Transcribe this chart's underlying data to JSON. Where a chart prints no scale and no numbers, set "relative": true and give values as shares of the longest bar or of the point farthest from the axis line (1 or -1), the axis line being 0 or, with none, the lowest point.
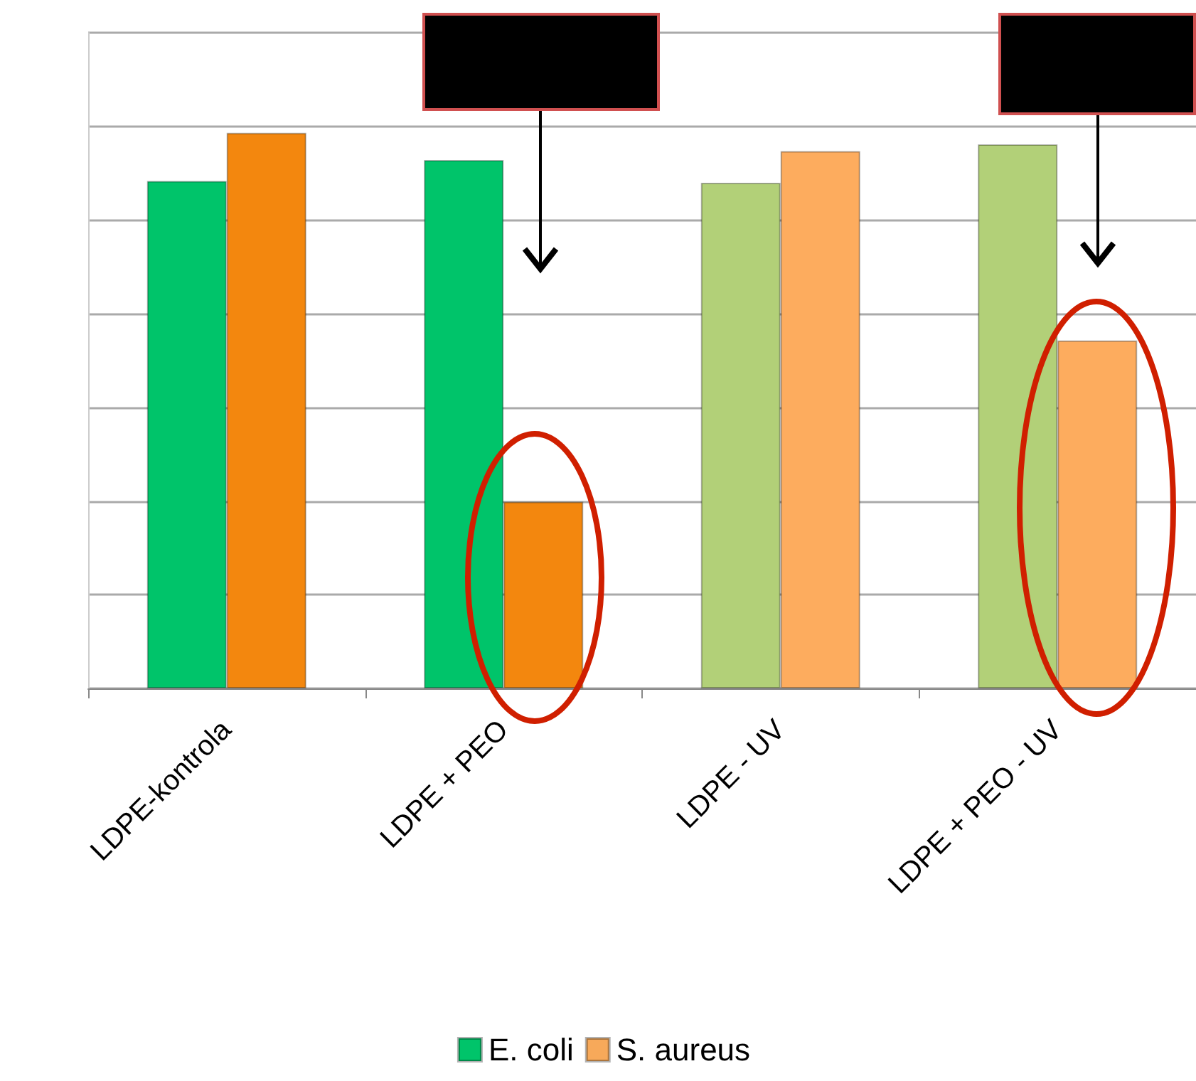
{
  "chart_data": {
    "type": "bar",
    "relative": true,
    "categories": [
      "LDPE-kontrola",
      "LDPE + PEO",
      "LDPE - UV",
      "LDPE + PEO - UV"
    ],
    "series": [
      {
        "name": "E. coli",
        "color": "#00c46a",
        "colors": [
          "#00c46a",
          "#00c46a",
          "#b2d078",
          "#b2d078"
        ],
        "values": [
          0.913,
          0.951,
          0.91,
          0.979
        ]
      },
      {
        "name": "S. aureus",
        "color": "#f7a95a",
        "colors": [
          "#f3870e",
          "#f3870e",
          "#fdac5e",
          "#fdac5e"
        ],
        "values": [
          1,
          0.336,
          0.967,
          0.626
        ]
      }
    ],
    "grid": "y",
    "legend": "bottom"
  }
}
